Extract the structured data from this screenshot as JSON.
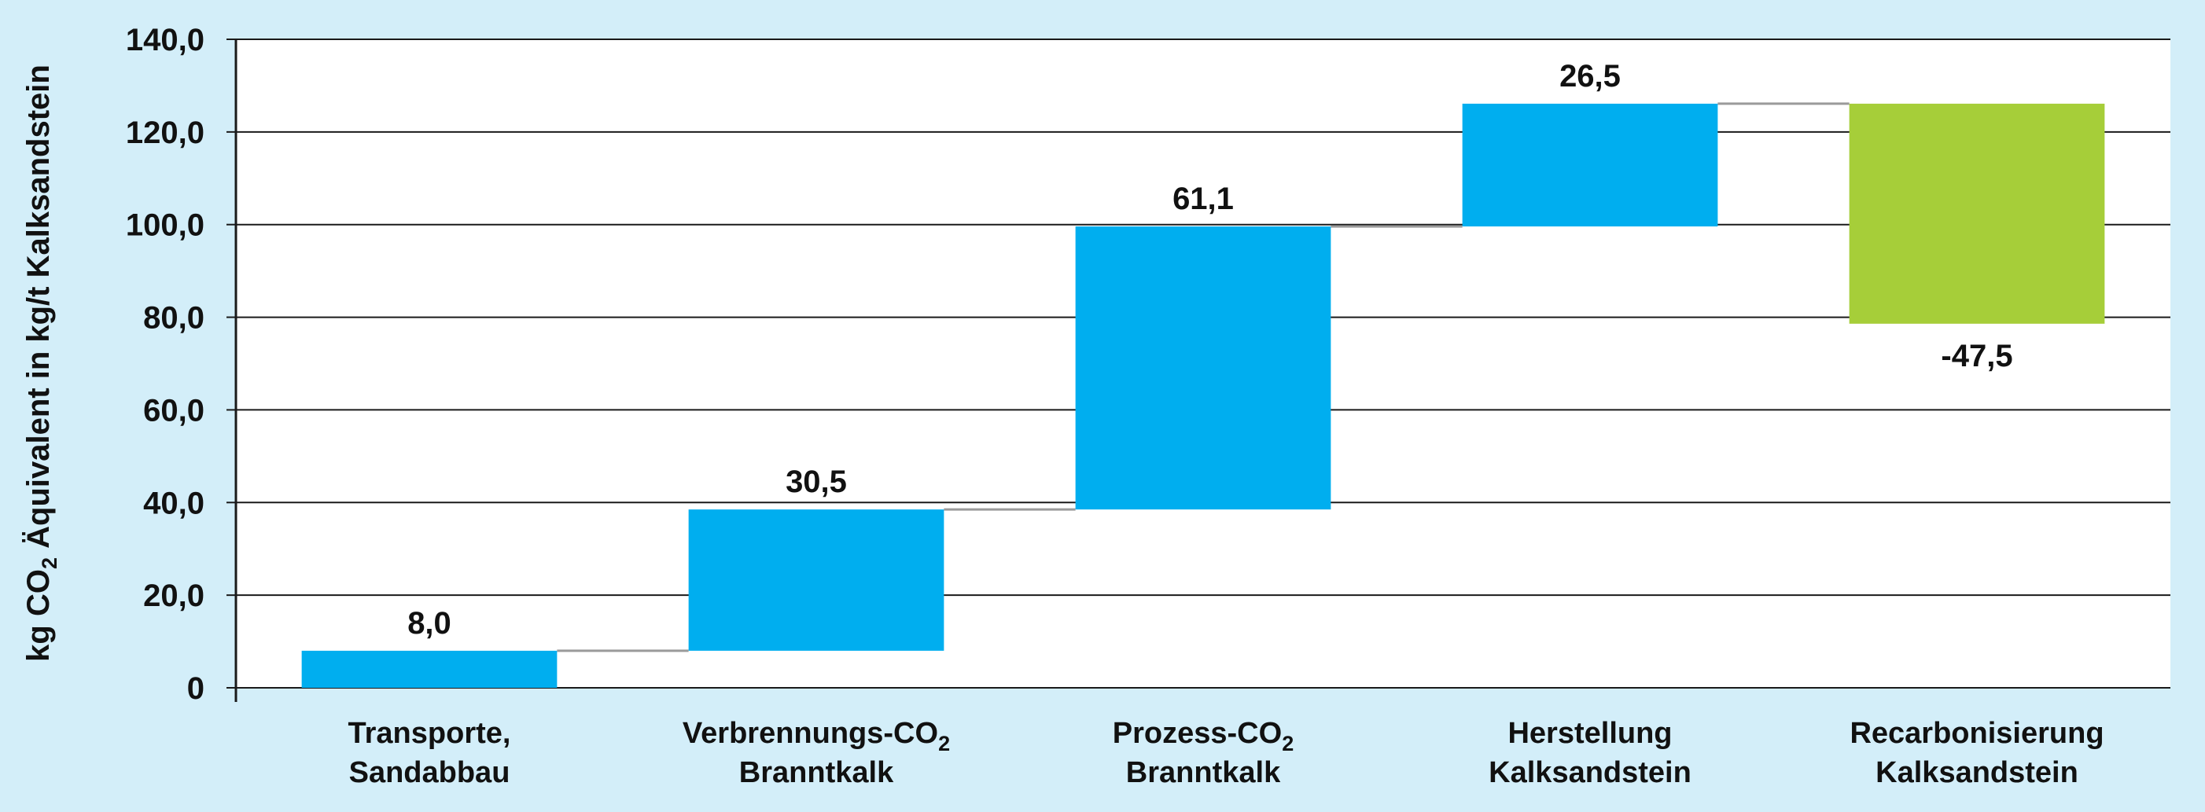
{
  "chart_data": {
    "type": "bar",
    "subtype": "waterfall",
    "title": "",
    "ylabel": {
      "prefix": "kg CO",
      "subscript": "2",
      "suffix": " Äquivalent in kg/t Kalksandstein"
    },
    "ylim": [
      0,
      140
    ],
    "yticks": [
      {
        "value": 0,
        "label": "0"
      },
      {
        "value": 20,
        "label": "20,0"
      },
      {
        "value": 40,
        "label": "40,0"
      },
      {
        "value": 60,
        "label": "60,0"
      },
      {
        "value": 80,
        "label": "80,0"
      },
      {
        "value": 100,
        "label": "100,0"
      },
      {
        "value": 120,
        "label": "120,0"
      },
      {
        "value": 140,
        "label": "140,0"
      }
    ],
    "grid": true,
    "categories": [
      {
        "line1": "Transporte,",
        "line2": "Sandabbau",
        "sub": ""
      },
      {
        "line1": "Verbrennungs-CO",
        "line2": "Branntkalk",
        "sub": "2"
      },
      {
        "line1": "Prozess-CO",
        "line2": "Branntkalk",
        "sub": "2"
      },
      {
        "line1": "Herstellung",
        "line2": "Kalksandstein",
        "sub": ""
      },
      {
        "line1": "Recarbonisierung",
        "line2": "Kalksandstein",
        "sub": ""
      }
    ],
    "steps": [
      {
        "value": 8.0,
        "label": "8,0",
        "color": "#00aeef"
      },
      {
        "value": 30.5,
        "label": "30,5",
        "color": "#00aeef"
      },
      {
        "value": 61.1,
        "label": "61,1",
        "color": "#00aeef"
      },
      {
        "value": 26.5,
        "label": "26,5",
        "color": "#00aeef"
      },
      {
        "value": -47.5,
        "label": "-47,5",
        "color": "#a6ce39"
      }
    ],
    "colors": {
      "positive": "#00aeef",
      "negative": "#a6ce39",
      "background": "#d3eef9",
      "plot_background": "#ffffff",
      "connector": "#9a9a9a"
    }
  }
}
